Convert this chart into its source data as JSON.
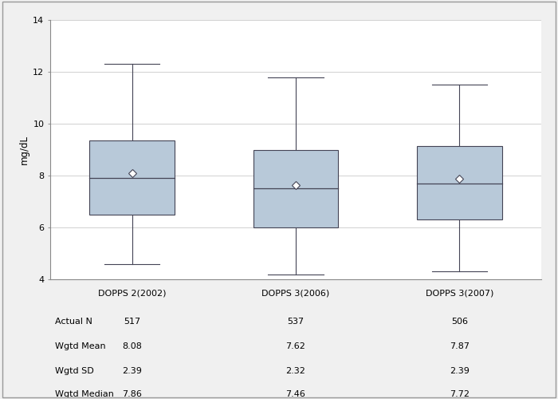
{
  "groups": [
    "DOPPS 2(2002)",
    "DOPPS 3(2006)",
    "DOPPS 3(2007)"
  ],
  "boxes": [
    {
      "whisker_low": 4.6,
      "q1": 6.5,
      "median": 7.9,
      "q3": 9.35,
      "whisker_high": 12.3,
      "mean": 8.08
    },
    {
      "whisker_low": 4.2,
      "q1": 6.0,
      "median": 7.5,
      "q3": 9.0,
      "whisker_high": 11.8,
      "mean": 7.62
    },
    {
      "whisker_low": 4.3,
      "q1": 6.3,
      "median": 7.7,
      "q3": 9.15,
      "whisker_high": 11.5,
      "mean": 7.87
    }
  ],
  "table_rows": [
    {
      "label": "Actual N",
      "values": [
        "517",
        "537",
        "506"
      ]
    },
    {
      "label": "Wgtd Mean",
      "values": [
        "8.08",
        "7.62",
        "7.87"
      ]
    },
    {
      "label": "Wgtd SD",
      "values": [
        "2.39",
        "2.32",
        "2.39"
      ]
    },
    {
      "label": "Wgtd Median",
      "values": [
        "7.86",
        "7.46",
        "7.72"
      ]
    }
  ],
  "ylabel": "mg/dL",
  "ylim": [
    4.0,
    14.0
  ],
  "yticks": [
    4,
    6,
    8,
    10,
    12,
    14
  ],
  "box_color": "#b8c9d9",
  "box_edge_color": "#444455",
  "whisker_color": "#444455",
  "median_color": "#444455",
  "mean_marker_color": "white",
  "mean_marker_edge_color": "#444455",
  "background_color": "#f0f0f0",
  "plot_bg_color": "white",
  "grid_color": "#d0d0d0",
  "box_width": 0.52,
  "fig_width": 7.0,
  "fig_height": 5.0,
  "table_fontsize": 8.0,
  "axis_fontsize": 8.5,
  "tick_fontsize": 8.0
}
